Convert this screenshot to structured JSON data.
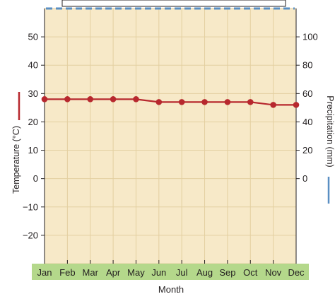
{
  "chart_data": {
    "type": "line",
    "categories": [
      "Jan",
      "Feb",
      "Mar",
      "Apr",
      "May",
      "Jun",
      "Jul",
      "Aug",
      "Sep",
      "Oct",
      "Nov",
      "Dec"
    ],
    "series": [
      {
        "name": "Temperature (°C)",
        "axis": "left",
        "values": [
          28,
          28,
          28,
          28,
          28,
          27,
          27,
          27,
          27,
          27,
          26,
          26
        ],
        "color": "#b7282e"
      },
      {
        "name": "Precipitation (mm)",
        "axis": "right",
        "values_above_axis_top": 12,
        "color": "#5a8fc3"
      }
    ],
    "xlabel": "Month",
    "ylabel_left": "Temperature (°C)",
    "ylabel_right": "Precipitation (mm)",
    "ylim_left": [
      -30,
      60
    ],
    "yticks_left": [
      "50",
      "40",
      "30",
      "20",
      "10",
      "0",
      "−10",
      "−20"
    ],
    "ylim_right": [
      -60,
      120
    ],
    "yticks_right": [
      "100",
      "80",
      "60",
      "40",
      "20",
      "0"
    ],
    "grid": true,
    "colors": {
      "plot_background": "#f7e9c8",
      "grid": "#e3cfa0",
      "month_band": "#b4d88b",
      "temperature": "#b7282e",
      "precipitation": "#5a8fc3"
    }
  }
}
